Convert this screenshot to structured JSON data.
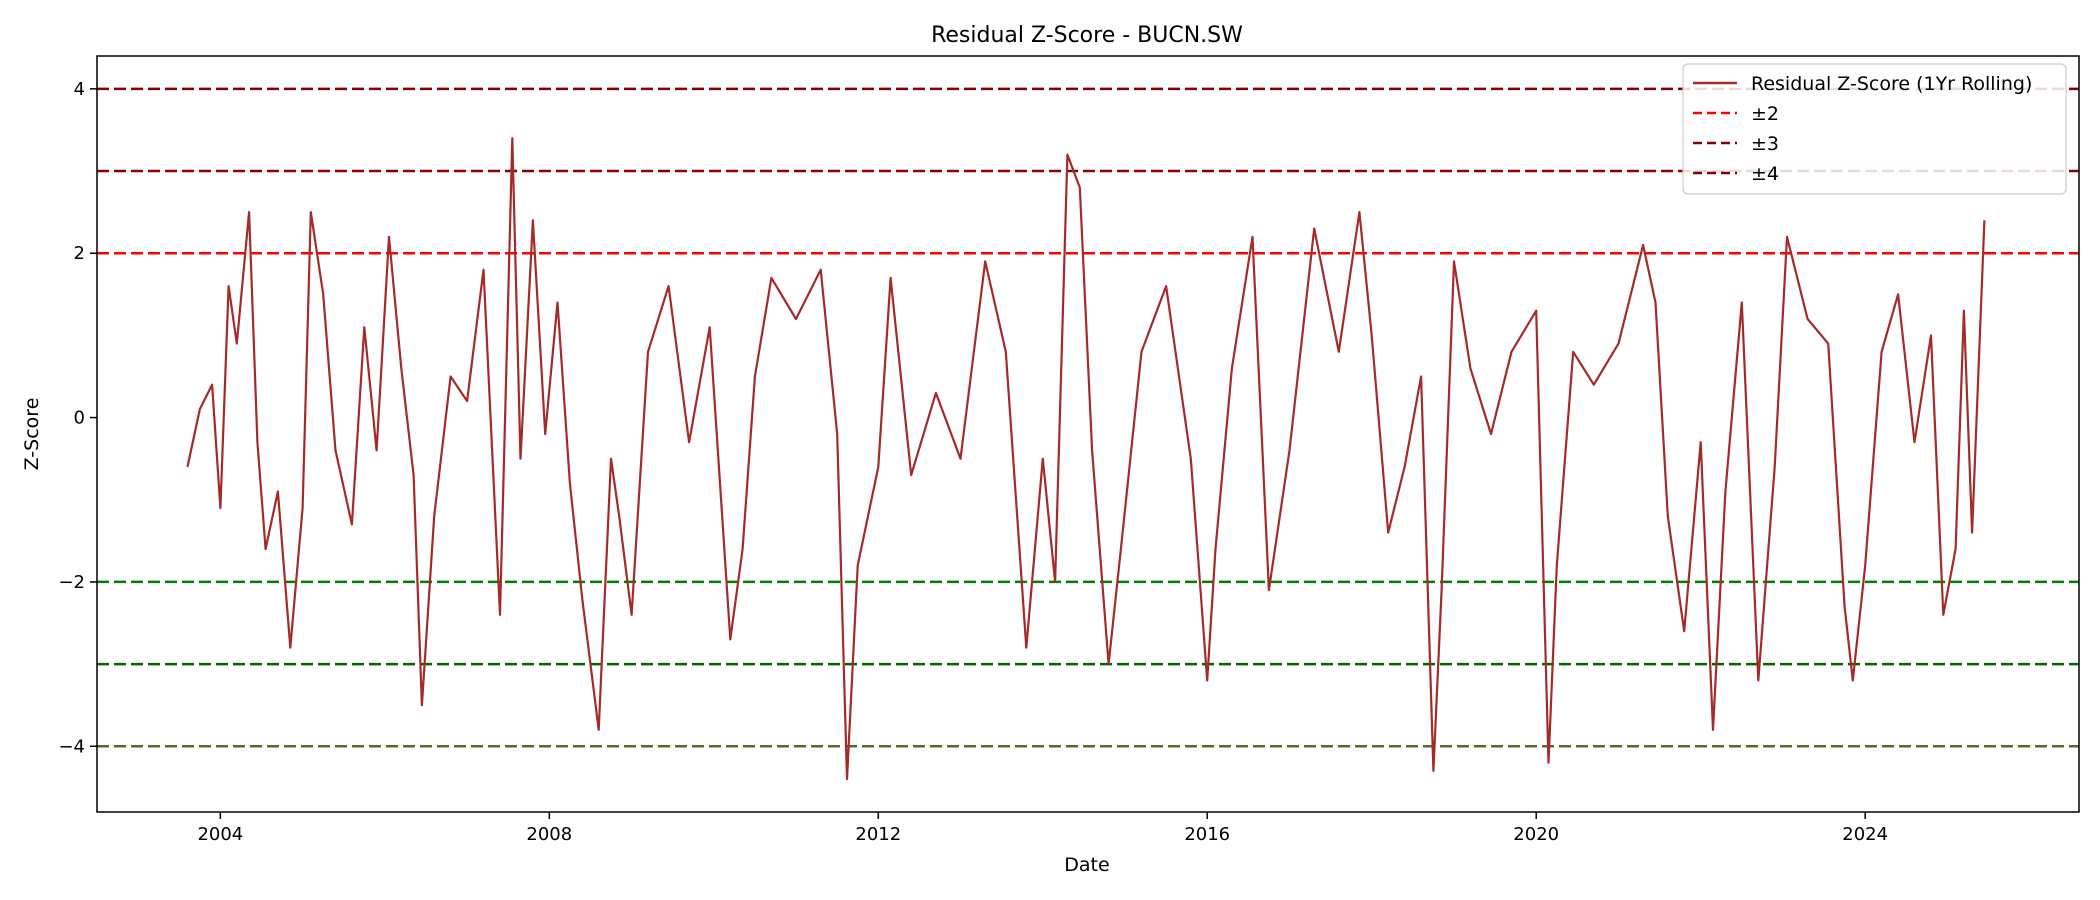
{
  "chart_data": {
    "type": "line",
    "title": "Residual Z-Score - BUCN.SW",
    "xlabel": "Date",
    "ylabel": "Z-Score",
    "xlim": [
      2002.5,
      2026.6
    ],
    "ylim": [
      -4.8,
      4.4
    ],
    "x_ticks": [
      2004,
      2008,
      2012,
      2016,
      2020,
      2024
    ],
    "x_tick_labels": [
      "2004",
      "2008",
      "2012",
      "2016",
      "2020",
      "2024"
    ],
    "y_ticks": [
      -4,
      -2,
      0,
      2,
      4
    ],
    "y_tick_labels": [
      "−4",
      "−2",
      "0",
      "2",
      "4"
    ],
    "grid": false,
    "legend_position": "top-right",
    "series": [
      {
        "name": "Residual Z-Score (1Yr Rolling)",
        "color": "#a52a2a",
        "style": "solid",
        "x": [
          2003.6,
          2003.75,
          2003.9,
          2004.0,
          2004.1,
          2004.2,
          2004.35,
          2004.45,
          2004.55,
          2004.7,
          2004.85,
          2005.0,
          2005.1,
          2005.25,
          2005.4,
          2005.6,
          2005.75,
          2005.9,
          2006.05,
          2006.2,
          2006.35,
          2006.45,
          2006.6,
          2006.8,
          2007.0,
          2007.2,
          2007.4,
          2007.55,
          2007.65,
          2007.8,
          2007.95,
          2008.1,
          2008.25,
          2008.4,
          2008.6,
          2008.75,
          2008.85,
          2009.0,
          2009.2,
          2009.45,
          2009.7,
          2009.95,
          2010.2,
          2010.35,
          2010.5,
          2010.7,
          2011.0,
          2011.3,
          2011.5,
          2011.62,
          2011.75,
          2012.0,
          2012.15,
          2012.4,
          2012.7,
          2013.0,
          2013.3,
          2013.55,
          2013.8,
          2014.0,
          2014.15,
          2014.3,
          2014.45,
          2014.6,
          2014.8,
          2014.95,
          2015.2,
          2015.5,
          2015.8,
          2016.0,
          2016.1,
          2016.3,
          2016.55,
          2016.75,
          2017.0,
          2017.3,
          2017.6,
          2017.85,
          2018.0,
          2018.2,
          2018.4,
          2018.6,
          2018.75,
          2018.85,
          2019.0,
          2019.2,
          2019.45,
          2019.7,
          2020.0,
          2020.15,
          2020.25,
          2020.45,
          2020.7,
          2021.0,
          2021.3,
          2021.45,
          2021.6,
          2021.8,
          2022.0,
          2022.15,
          2022.3,
          2022.5,
          2022.7,
          2022.9,
          2023.05,
          2023.3,
          2023.55,
          2023.75,
          2023.85,
          2024.0,
          2024.2,
          2024.4,
          2024.6,
          2024.8,
          2024.95,
          2025.1,
          2025.2,
          2025.3,
          2025.45
        ],
        "y": [
          -0.6,
          0.1,
          0.4,
          -1.1,
          1.6,
          0.9,
          2.5,
          -0.3,
          -1.6,
          -0.9,
          -2.8,
          -1.1,
          2.5,
          1.5,
          -0.4,
          -1.3,
          1.1,
          -0.4,
          2.2,
          0.6,
          -0.7,
          -3.5,
          -1.2,
          0.5,
          0.2,
          1.8,
          -2.4,
          3.4,
          -0.5,
          2.4,
          -0.2,
          1.4,
          -0.8,
          -2.2,
          -3.8,
          -0.5,
          -1.2,
          -2.4,
          0.8,
          1.6,
          -0.3,
          1.1,
          -2.7,
          -1.6,
          0.5,
          1.7,
          1.2,
          1.8,
          -0.2,
          -4.4,
          -1.8,
          -0.6,
          1.7,
          -0.7,
          0.3,
          -0.5,
          1.9,
          0.8,
          -2.8,
          -0.5,
          -2.0,
          3.2,
          2.8,
          -0.4,
          -3.0,
          -1.6,
          0.8,
          1.6,
          -0.5,
          -3.2,
          -1.6,
          0.6,
          2.2,
          -2.1,
          -0.4,
          2.3,
          0.8,
          2.5,
          1.0,
          -1.4,
          -0.6,
          0.5,
          -4.3,
          -2.1,
          1.9,
          0.6,
          -0.2,
          0.8,
          1.3,
          -4.2,
          -1.8,
          0.8,
          0.4,
          0.9,
          2.1,
          1.4,
          -1.2,
          -2.6,
          -0.3,
          -3.8,
          -0.9,
          1.4,
          -3.2,
          -0.6,
          2.2,
          1.2,
          0.9,
          -2.3,
          -3.2,
          -1.8,
          0.8,
          1.5,
          -0.3,
          1.0,
          -2.4,
          -1.6,
          1.3,
          -1.4,
          2.4
        ]
      },
      {
        "name": "±2",
        "color": "#ff0000",
        "style": "dashed",
        "y_levels": [
          2
        ]
      },
      {
        "name": "±3",
        "color": "#8b0000",
        "style": "dashed",
        "y_levels": [
          3
        ]
      },
      {
        "name": "±4",
        "color": "#800000",
        "style": "dashed",
        "y_levels": [
          4
        ]
      }
    ],
    "unlabeled_lines": [
      {
        "y": -2,
        "color": "#008000",
        "style": "dashed"
      },
      {
        "y": -3,
        "color": "#006400",
        "style": "dashed"
      },
      {
        "y": -4,
        "color": "#556b2f",
        "style": "dashed"
      }
    ]
  }
}
